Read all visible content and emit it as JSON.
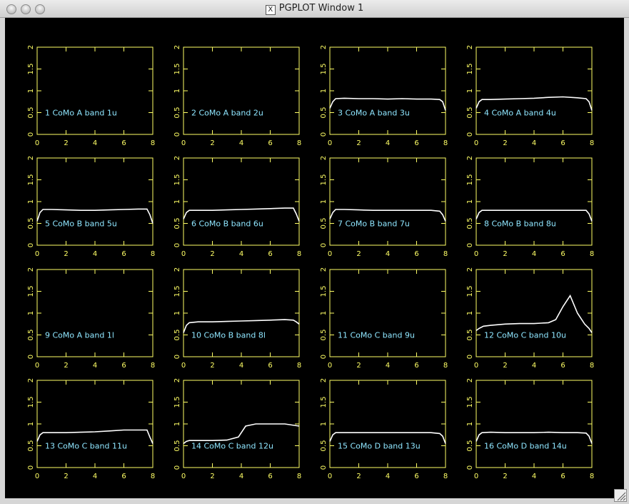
{
  "window_title": "PGPLOT Window 1",
  "chart_data": [
    {
      "type": "line",
      "label": "1 CoMo A band 1u",
      "xlim": [
        0,
        8
      ],
      "ylim": [
        0,
        2
      ],
      "xticks": [
        0,
        2,
        4,
        6,
        8
      ],
      "yticks": [
        0,
        0.5,
        1,
        1.5,
        2
      ],
      "color": "#ffffff"
    },
    {
      "type": "line",
      "label": "2 CoMo A band 2u",
      "xlim": [
        0,
        8
      ],
      "ylim": [
        0,
        2
      ],
      "xticks": [
        0,
        2,
        4,
        6,
        8
      ],
      "yticks": [
        0,
        0.5,
        1,
        1.5,
        2
      ],
      "color": "#ffffff"
    },
    {
      "type": "line",
      "label": "3 CoMo A band 3u",
      "xlim": [
        0,
        8
      ],
      "ylim": [
        0,
        2
      ],
      "xticks": [
        0,
        2,
        4,
        6,
        8
      ],
      "yticks": [
        0,
        0.5,
        1,
        1.5,
        2
      ],
      "color": "#ffffff",
      "x": [
        0,
        0.2,
        0.4,
        1,
        2,
        3,
        4,
        5,
        6,
        7,
        7.6,
        7.8,
        8
      ],
      "values": [
        0.6,
        0.75,
        0.82,
        0.83,
        0.82,
        0.82,
        0.81,
        0.82,
        0.81,
        0.81,
        0.8,
        0.75,
        0.55
      ]
    },
    {
      "type": "line",
      "label": "4 CoMo A band 4u",
      "xlim": [
        0,
        8
      ],
      "ylim": [
        0,
        2
      ],
      "xticks": [
        0,
        2,
        4,
        6,
        8
      ],
      "yticks": [
        0,
        0.5,
        1,
        1.5,
        2
      ],
      "color": "#ffffff",
      "x": [
        0,
        0.2,
        0.4,
        1,
        2,
        3,
        4,
        5,
        6,
        7,
        7.6,
        7.8,
        8
      ],
      "values": [
        0.6,
        0.75,
        0.8,
        0.8,
        0.81,
        0.82,
        0.83,
        0.85,
        0.86,
        0.84,
        0.82,
        0.75,
        0.55
      ]
    },
    {
      "type": "line",
      "label": "5 CoMo B band 5u",
      "xlim": [
        0,
        8
      ],
      "ylim": [
        0,
        2
      ],
      "xticks": [
        0,
        2,
        4,
        6,
        8
      ],
      "yticks": [
        0,
        0.5,
        1,
        1.5,
        2
      ],
      "color": "#ffffff",
      "x": [
        0,
        0.2,
        0.4,
        1,
        2,
        3,
        4,
        5,
        6,
        7,
        7.6,
        7.8,
        8
      ],
      "values": [
        0.55,
        0.75,
        0.82,
        0.82,
        0.81,
        0.8,
        0.8,
        0.81,
        0.82,
        0.83,
        0.83,
        0.7,
        0.5
      ]
    },
    {
      "type": "line",
      "label": "6 CoMo B band 6u",
      "xlim": [
        0,
        8
      ],
      "ylim": [
        0,
        2
      ],
      "xticks": [
        0,
        2,
        4,
        6,
        8
      ],
      "yticks": [
        0,
        0.5,
        1,
        1.5,
        2
      ],
      "color": "#ffffff",
      "x": [
        0,
        0.2,
        0.4,
        1,
        2,
        3,
        4,
        5,
        6,
        7,
        7.6,
        7.8,
        8
      ],
      "values": [
        0.6,
        0.75,
        0.8,
        0.8,
        0.8,
        0.81,
        0.82,
        0.83,
        0.84,
        0.85,
        0.85,
        0.72,
        0.55
      ]
    },
    {
      "type": "line",
      "label": "7 CoMo B band 7u",
      "xlim": [
        0,
        8
      ],
      "ylim": [
        0,
        2
      ],
      "xticks": [
        0,
        2,
        4,
        6,
        8
      ],
      "yticks": [
        0,
        0.5,
        1,
        1.5,
        2
      ],
      "color": "#ffffff",
      "x": [
        0,
        0.2,
        0.4,
        1,
        2,
        3,
        4,
        5,
        6,
        7,
        7.6,
        7.8,
        8
      ],
      "values": [
        0.6,
        0.75,
        0.82,
        0.82,
        0.81,
        0.8,
        0.8,
        0.8,
        0.8,
        0.8,
        0.78,
        0.7,
        0.55
      ]
    },
    {
      "type": "line",
      "label": "8 CoMo B band 8u",
      "xlim": [
        0,
        8
      ],
      "ylim": [
        0,
        2
      ],
      "xticks": [
        0,
        2,
        4,
        6,
        8
      ],
      "yticks": [
        0,
        0.5,
        1,
        1.5,
        2
      ],
      "color": "#ffffff",
      "x": [
        0,
        0.2,
        0.4,
        1,
        2,
        3,
        4,
        5,
        6,
        7,
        7.6,
        7.8,
        8
      ],
      "values": [
        0.6,
        0.75,
        0.8,
        0.8,
        0.8,
        0.8,
        0.8,
        0.8,
        0.8,
        0.8,
        0.8,
        0.72,
        0.55
      ]
    },
    {
      "type": "line",
      "label": "9 CoMo A band 1l",
      "xlim": [
        0,
        8
      ],
      "ylim": [
        0,
        2
      ],
      "xticks": [
        0,
        2,
        4,
        6,
        8
      ],
      "yticks": [
        0,
        0.5,
        1,
        1.5,
        2
      ],
      "color": "#ffffff"
    },
    {
      "type": "line",
      "label": "10 CoMo B band 8l",
      "xlim": [
        0,
        8
      ],
      "ylim": [
        0,
        2
      ],
      "xticks": [
        0,
        2,
        4,
        6,
        8
      ],
      "yticks": [
        0,
        0.5,
        1,
        1.5,
        2
      ],
      "color": "#ffffff",
      "x": [
        0,
        0.2,
        0.4,
        1,
        2,
        3,
        4,
        5,
        6,
        7,
        7.6,
        7.8,
        8
      ],
      "values": [
        0.55,
        0.72,
        0.78,
        0.8,
        0.8,
        0.81,
        0.82,
        0.83,
        0.84,
        0.85,
        0.84,
        0.8,
        0.75
      ]
    },
    {
      "type": "line",
      "label": "11 CoMo C band 9u",
      "xlim": [
        0,
        8
      ],
      "ylim": [
        0,
        2
      ],
      "xticks": [
        0,
        2,
        4,
        6,
        8
      ],
      "yticks": [
        0,
        0.5,
        1,
        1.5,
        2
      ],
      "color": "#ffffff"
    },
    {
      "type": "line",
      "label": "12 CoMo C band 10u",
      "xlim": [
        0,
        8
      ],
      "ylim": [
        0,
        2
      ],
      "xticks": [
        0,
        2,
        4,
        6,
        8
      ],
      "yticks": [
        0,
        0.5,
        1,
        1.5,
        2
      ],
      "color": "#ffffff",
      "x": [
        0,
        0.2,
        0.5,
        1,
        2,
        3,
        4,
        4.5,
        5,
        5.5,
        6,
        6.5,
        7,
        7.5,
        7.8,
        8
      ],
      "values": [
        0.6,
        0.65,
        0.7,
        0.72,
        0.75,
        0.76,
        0.76,
        0.77,
        0.78,
        0.85,
        1.15,
        1.4,
        1.0,
        0.75,
        0.65,
        0.55
      ]
    },
    {
      "type": "line",
      "label": "13 CoMo C band 11u",
      "xlim": [
        0,
        8
      ],
      "ylim": [
        0,
        2
      ],
      "xticks": [
        0,
        2,
        4,
        6,
        8
      ],
      "yticks": [
        0,
        0.5,
        1,
        1.5,
        2
      ],
      "color": "#ffffff",
      "x": [
        0,
        0.2,
        0.4,
        1,
        2,
        3,
        4,
        5,
        6,
        7,
        7.6,
        7.8,
        8
      ],
      "values": [
        0.6,
        0.75,
        0.8,
        0.8,
        0.8,
        0.81,
        0.82,
        0.84,
        0.86,
        0.86,
        0.86,
        0.7,
        0.55
      ]
    },
    {
      "type": "line",
      "label": "14 CoMo C band 12u",
      "xlim": [
        0,
        8
      ],
      "ylim": [
        0,
        2
      ],
      "xticks": [
        0,
        2,
        4,
        6,
        8
      ],
      "yticks": [
        0,
        0.5,
        1,
        1.5,
        2
      ],
      "color": "#ffffff",
      "x": [
        0,
        0.2,
        0.4,
        1,
        2,
        3,
        3.8,
        4.3,
        5,
        6,
        7,
        8
      ],
      "values": [
        0.55,
        0.6,
        0.62,
        0.62,
        0.62,
        0.63,
        0.7,
        0.95,
        1.0,
        1.0,
        1.0,
        0.95
      ]
    },
    {
      "type": "line",
      "label": "15 CoMo D band 13u",
      "xlim": [
        0,
        8
      ],
      "ylim": [
        0,
        2
      ],
      "xticks": [
        0,
        2,
        4,
        6,
        8
      ],
      "yticks": [
        0,
        0.5,
        1,
        1.5,
        2
      ],
      "color": "#ffffff",
      "x": [
        0,
        0.2,
        0.4,
        1,
        2,
        3,
        4,
        5,
        6,
        7,
        7.6,
        7.8,
        8
      ],
      "values": [
        0.6,
        0.75,
        0.8,
        0.8,
        0.8,
        0.8,
        0.8,
        0.8,
        0.8,
        0.8,
        0.78,
        0.72,
        0.55
      ]
    },
    {
      "type": "line",
      "label": "16 CoMo D band 14u",
      "xlim": [
        0,
        8
      ],
      "ylim": [
        0,
        2
      ],
      "xticks": [
        0,
        2,
        4,
        6,
        8
      ],
      "yticks": [
        0,
        0.5,
        1,
        1.5,
        2
      ],
      "color": "#ffffff",
      "x": [
        0,
        0.2,
        0.4,
        1,
        2,
        3,
        4,
        5,
        6,
        7,
        7.6,
        7.8,
        8
      ],
      "values": [
        0.6,
        0.75,
        0.8,
        0.81,
        0.8,
        0.8,
        0.8,
        0.81,
        0.8,
        0.8,
        0.79,
        0.72,
        0.55
      ]
    }
  ]
}
